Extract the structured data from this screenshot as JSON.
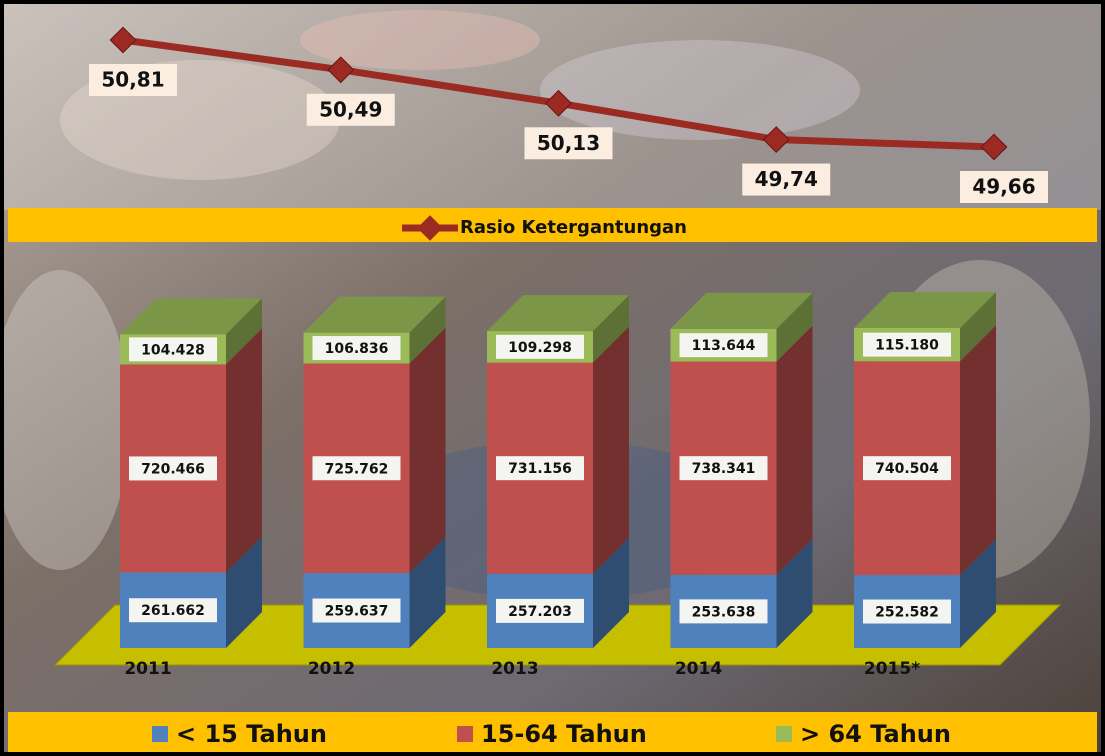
{
  "chart_data": [
    {
      "type": "line",
      "categories": [
        null,
        null,
        null,
        null,
        null
      ],
      "series": [
        {
          "name": "Rasio Ketergantungan",
          "color": "#9b2a22",
          "values": [
            50.81,
            50.49,
            50.13,
            49.74,
            49.66
          ],
          "value_labels": [
            "50,81",
            "50,49",
            "50,13",
            "49,74",
            "49,66"
          ]
        }
      ]
    },
    {
      "type": "bar3d-stacked",
      "categories": [
        "2011",
        "2012",
        "2013",
        "2014",
        "2015*"
      ],
      "series": [
        {
          "name": "< 15 Tahun",
          "color": "#4f81bd",
          "values": [
            261662,
            259637,
            257203,
            253638,
            252582
          ],
          "value_labels": [
            "261.662",
            "259.637",
            "257.203",
            "253.638",
            "252.582"
          ]
        },
        {
          "name": "15-64 Tahun",
          "color": "#c0504d",
          "values": [
            720466,
            725762,
            731156,
            738341,
            740504
          ],
          "value_labels": [
            "720.466",
            "725.762",
            "731.156",
            "738.341",
            "740.504"
          ]
        },
        {
          "name": "> 64 Tahun",
          "color": "#9bbb59",
          "values": [
            104428,
            106836,
            109298,
            113644,
            115180
          ],
          "value_labels": [
            "104.428",
            "106.836",
            "109.298",
            "113.644",
            "115.180"
          ]
        }
      ]
    }
  ]
}
